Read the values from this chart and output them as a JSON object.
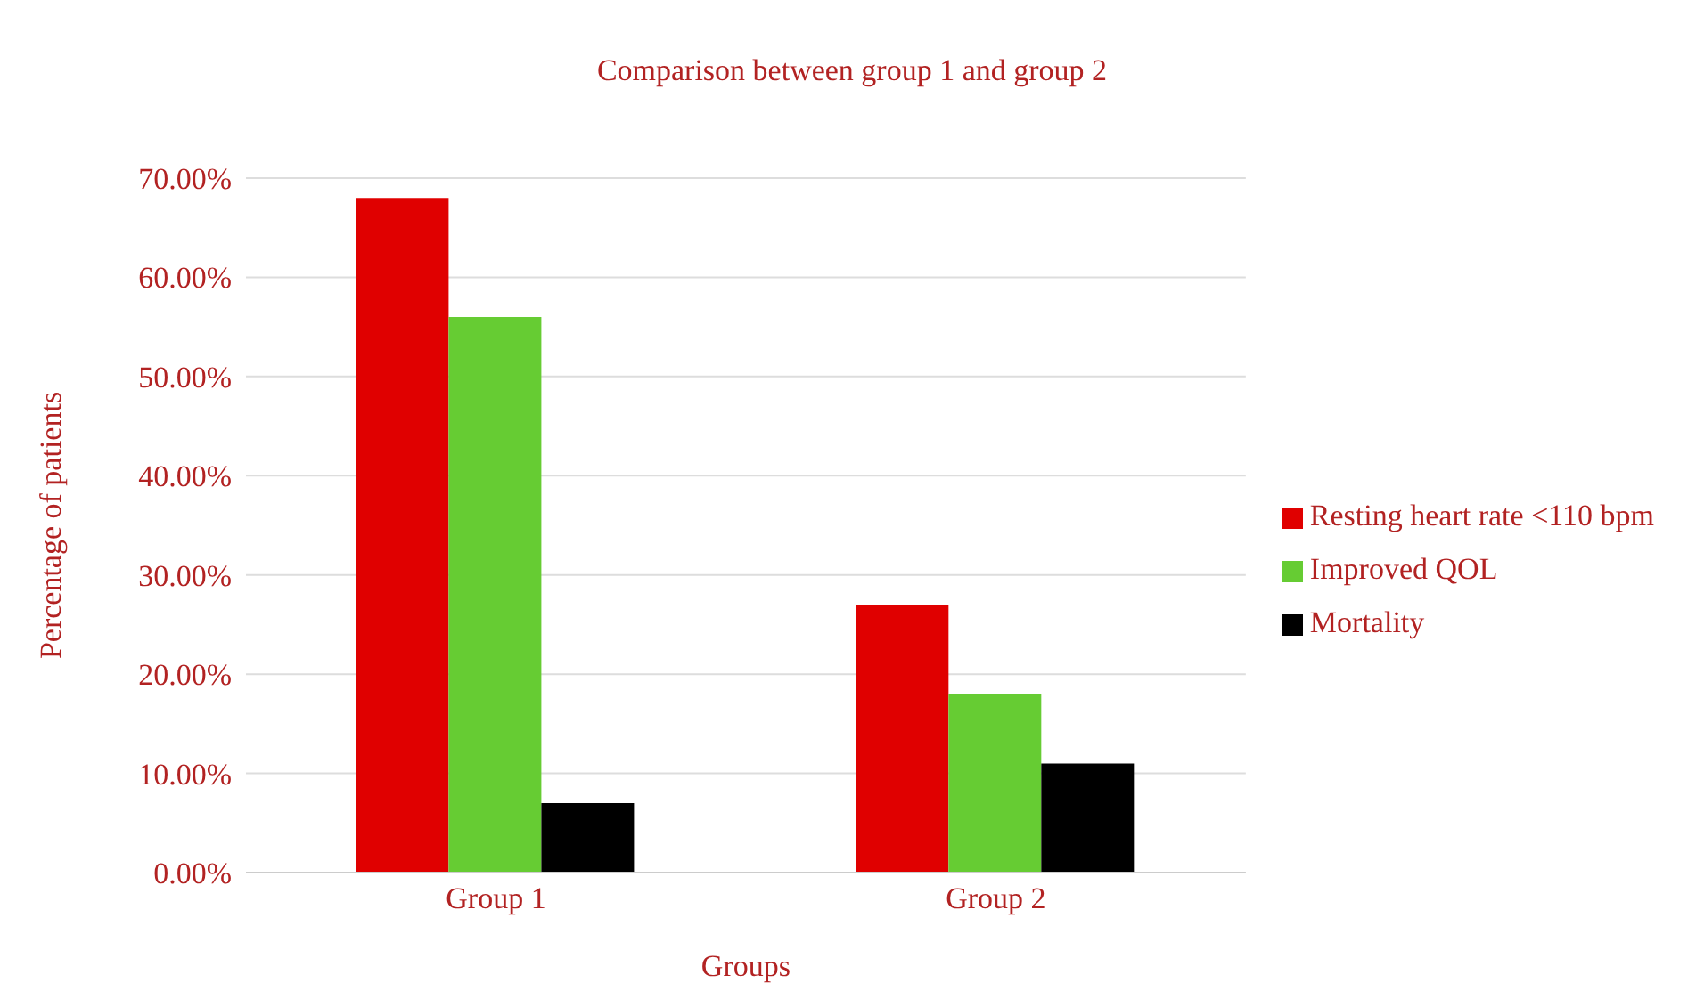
{
  "chart_data": {
    "type": "bar",
    "title": "Comparison between group 1 and group 2",
    "xlabel": "Groups",
    "ylabel": "Percentage of patients",
    "categories": [
      "Group 1",
      "Group 2"
    ],
    "series": [
      {
        "name": "Resting heart rate <110 bpm",
        "color": "#e00000",
        "values": [
          68,
          27
        ]
      },
      {
        "name": "Improved QOL",
        "color": "#66cc33",
        "values": [
          56,
          18
        ]
      },
      {
        "name": "Mortality",
        "color": "#000000",
        "values": [
          7,
          11
        ]
      }
    ],
    "ylim": [
      0,
      70
    ],
    "yticks": [
      {
        "value": 0,
        "label": "0.00%"
      },
      {
        "value": 10,
        "label": "10.00%"
      },
      {
        "value": 20,
        "label": "20.00%"
      },
      {
        "value": 30,
        "label": "30.00%"
      },
      {
        "value": 40,
        "label": "40.00%"
      },
      {
        "value": 50,
        "label": "50.00%"
      },
      {
        "value": 60,
        "label": "60.00%"
      },
      {
        "value": 70,
        "label": "70.00%"
      }
    ],
    "grid": "y",
    "legend": "right"
  }
}
